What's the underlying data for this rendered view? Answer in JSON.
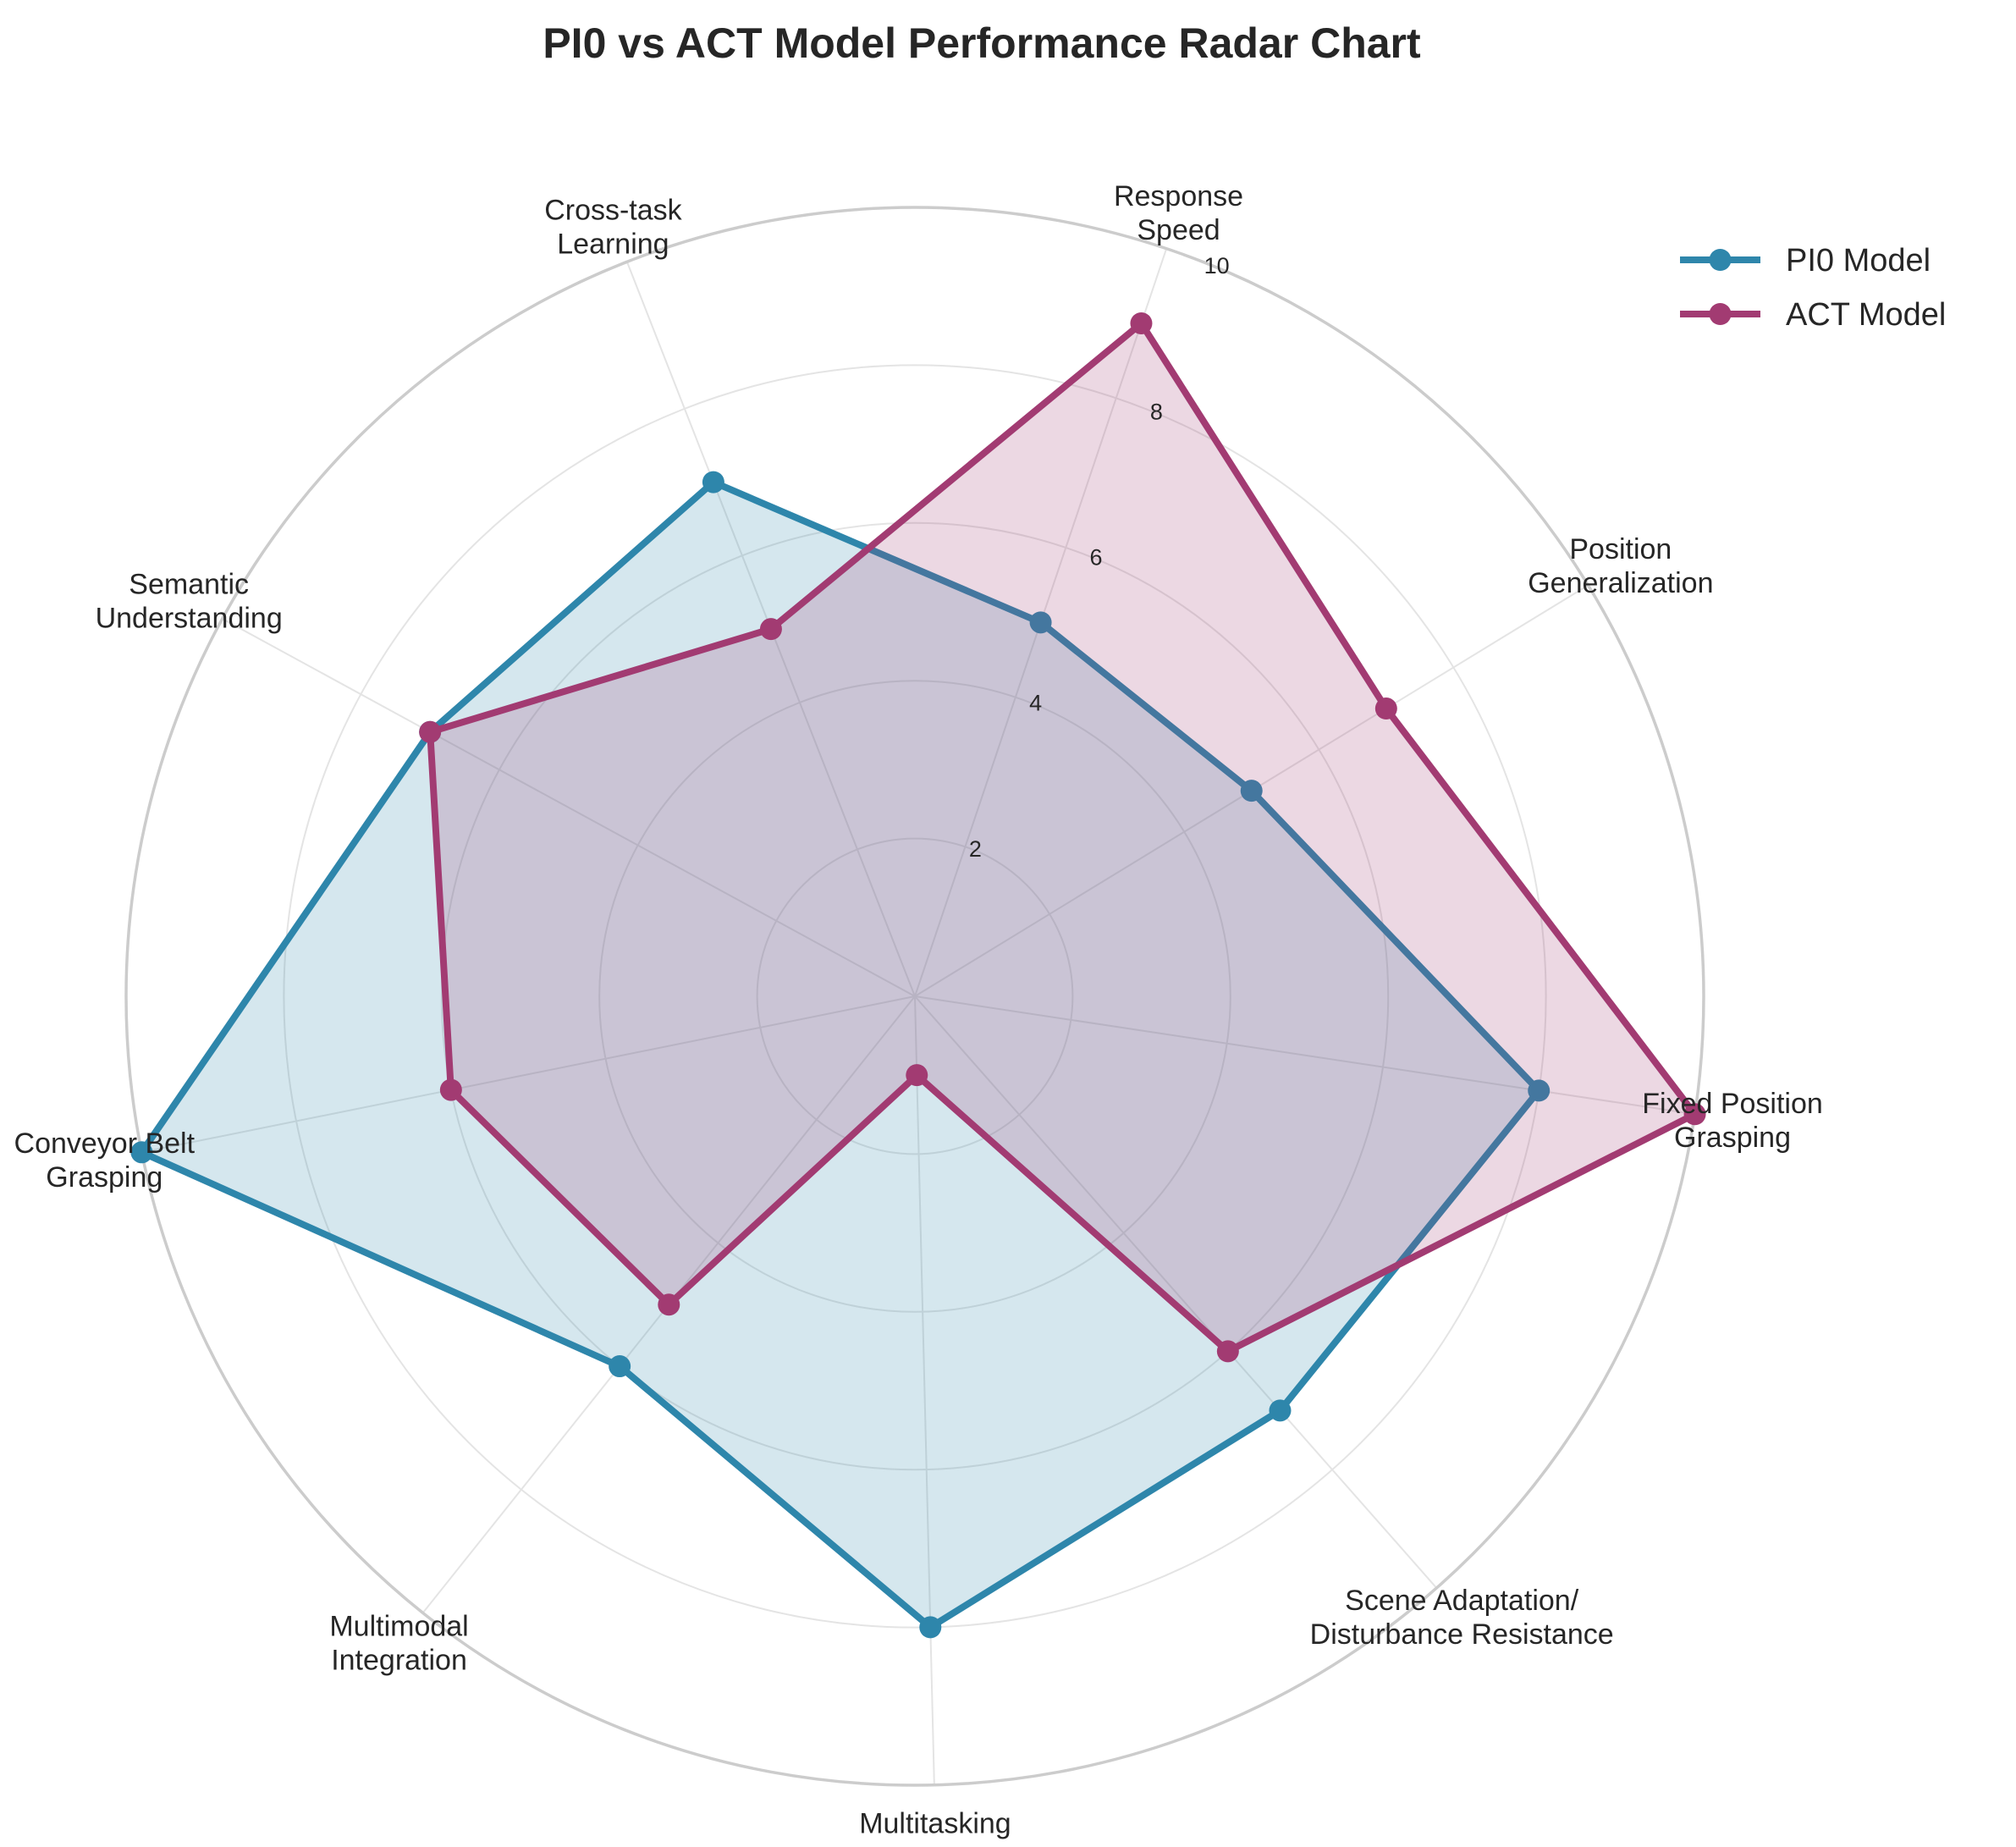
{
  "colors": {
    "series_0": "#2E86AB",
    "series_1": "#A23B72",
    "grid": "#E4E4E4",
    "frame": "#CCCCCC",
    "text": "#262626"
  },
  "chart_data": {
    "type": "radar",
    "title": "PI0 vs ACT Model Performance Radar Chart",
    "categories": [
      "Fixed Position\nGrasping",
      "Position\nGeneralization",
      "Response\nSpeed",
      "Cross-task\nLearning",
      "Semantic\nUnderstanding",
      "Conveyor Belt\nGrasping",
      "Multimodal\nIntegration",
      "Multitasking",
      "Scene Adaptation/\nDisturbance Resistance"
    ],
    "series": [
      {
        "name": "PI0 Model",
        "values": [
          8,
          5,
          5,
          7,
          7,
          10,
          6,
          8,
          7
        ],
        "color": "#2E86AB"
      },
      {
        "name": "ACT Model",
        "values": [
          10,
          7,
          9,
          5,
          7,
          6,
          5,
          1,
          6
        ],
        "color": "#A23B72"
      }
    ],
    "ylim": [
      0,
      10
    ],
    "rticks": [
      2,
      4,
      6,
      8,
      10
    ],
    "grid": true,
    "legend_position": "top-right"
  }
}
